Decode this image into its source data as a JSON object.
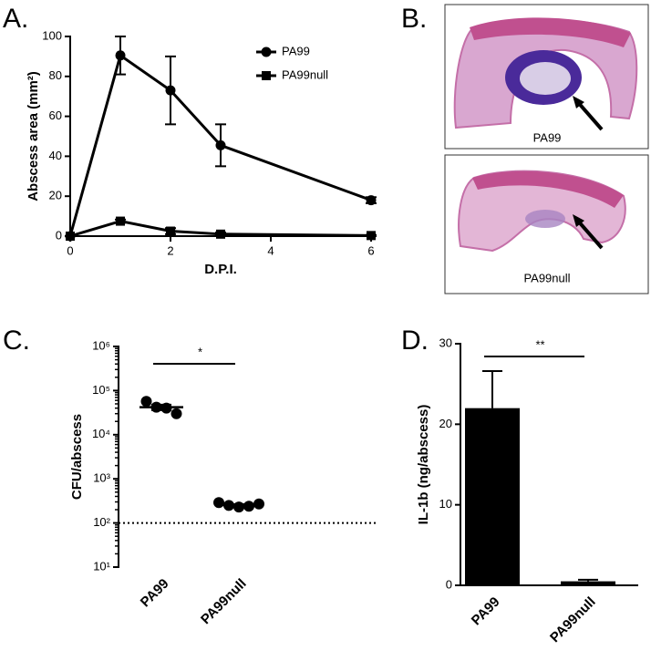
{
  "chart_data": [
    {
      "type": "line",
      "title": "A.",
      "x_label": "D.P.I.",
      "y_label": "Abscess area (mm²)",
      "x": [
        0,
        1,
        2,
        3,
        6
      ],
      "xlim": [
        0,
        6
      ],
      "xticks": [
        0,
        2,
        4,
        6
      ],
      "ylim": [
        0,
        100
      ],
      "yticks": [
        0,
        20,
        40,
        60,
        80,
        100
      ],
      "series": [
        {
          "name": "PA99",
          "color": "#000000",
          "marker": "circle",
          "values": [
            0,
            90.5,
            73,
            45.5,
            18
          ],
          "errors": [
            0,
            9.5,
            17,
            10.5,
            1.5
          ]
        },
        {
          "name": "PA99null",
          "color": "#000000",
          "marker": "square",
          "values": [
            0,
            7.5,
            2.5,
            1,
            0.3
          ],
          "errors": [
            0,
            0.8,
            1.5,
            0.8,
            0.3
          ]
        }
      ]
    },
    {
      "type": "image",
      "title": "B.",
      "captions": [
        "PA99",
        "PA99null"
      ]
    },
    {
      "type": "dot",
      "title": "C.",
      "y_label": "CFU/abscess",
      "yscale": "log",
      "categories": [
        "PA99",
        "PA99null"
      ],
      "ylim": [
        10,
        1000000
      ],
      "yticks": [
        {
          "value": 10,
          "label": "10¹"
        },
        {
          "value": 100,
          "label": "10²"
        },
        {
          "value": 1000,
          "label": "10³"
        },
        {
          "value": 10000,
          "label": "10⁴"
        },
        {
          "value": 100000,
          "label": "10⁵"
        },
        {
          "value": 1000000,
          "label": "10⁶"
        }
      ],
      "points": [
        [
          57000,
          42000,
          40000,
          30000
        ],
        [
          290,
          250,
          230,
          240,
          270
        ]
      ],
      "mean": [
        42000,
        256
      ],
      "sem": [
        6000,
        11
      ],
      "reference_line": 100,
      "significance": "*"
    },
    {
      "type": "bar",
      "title": "D.",
      "y_label": "IL-1b (ng/abscess)",
      "categories": [
        "PA99",
        "PA99null"
      ],
      "color": "#000000",
      "values": [
        22,
        0.5
      ],
      "errors": [
        4.6,
        0.2
      ],
      "ylim": [
        0,
        30
      ],
      "yticks": [
        0,
        10,
        20,
        30
      ],
      "significance": "**"
    }
  ]
}
